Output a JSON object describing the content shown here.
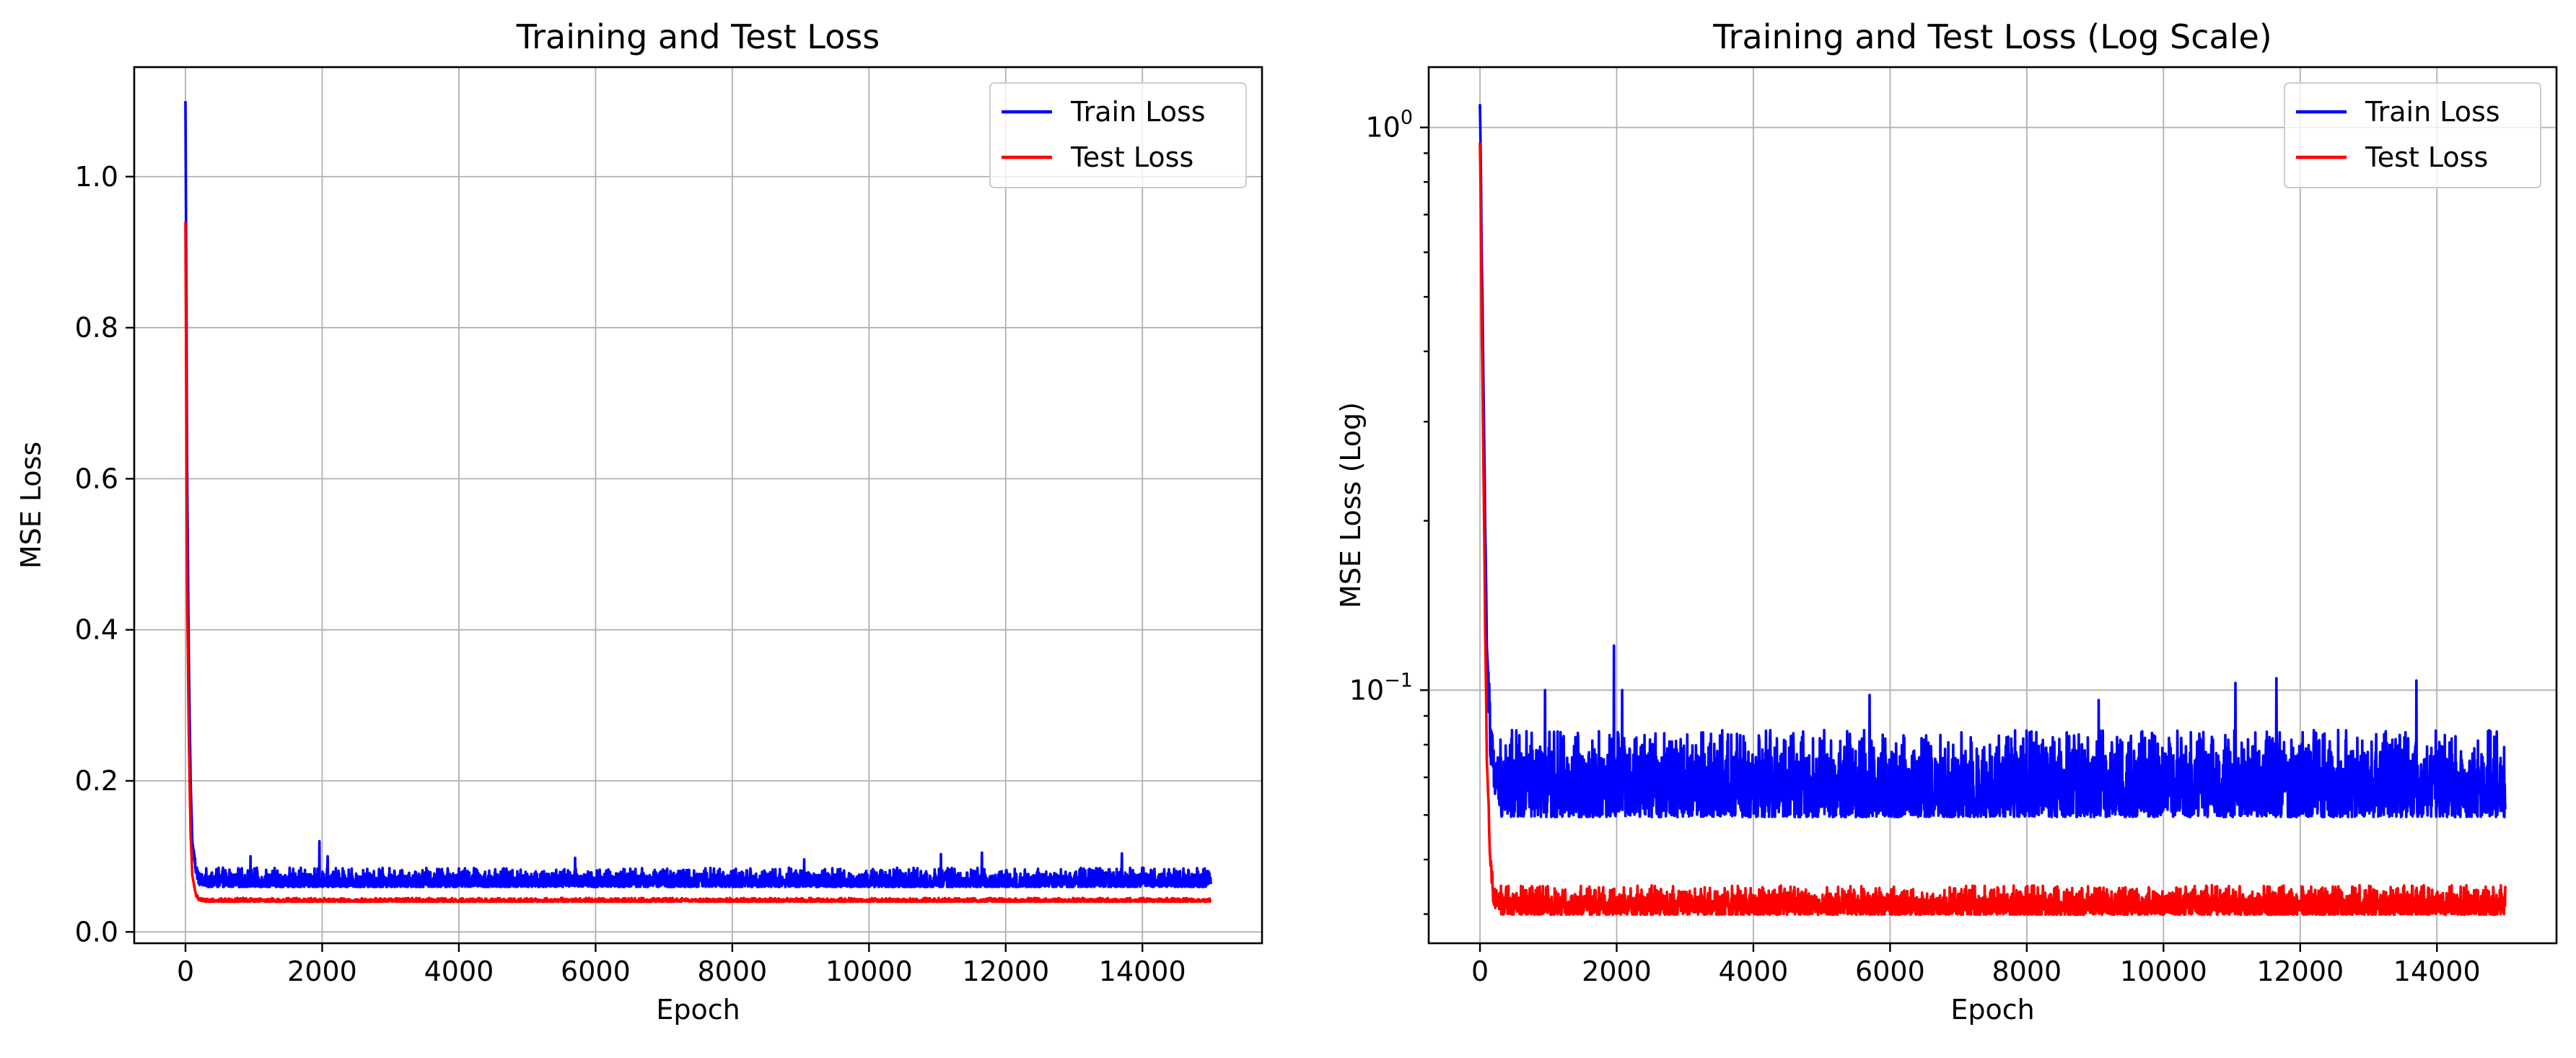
{
  "chart_data": [
    {
      "type": "line",
      "title": "Training and Test Loss",
      "xlabel": "Epoch",
      "ylabel": "MSE Loss",
      "yscale": "linear",
      "xlim": [
        -750,
        15750
      ],
      "ylim": [
        -0.015,
        1.145
      ],
      "x_ticks": [
        0,
        2000,
        4000,
        6000,
        8000,
        10000,
        12000,
        14000
      ],
      "x_tick_labels": [
        "0",
        "2000",
        "4000",
        "6000",
        "8000",
        "10000",
        "12000",
        "14000"
      ],
      "y_ticks": [
        0.0,
        0.2,
        0.4,
        0.6,
        0.8,
        1.0
      ],
      "y_tick_labels": [
        "0.0",
        "0.2",
        "0.4",
        "0.6",
        "0.8",
        "1.0"
      ],
      "grid": true,
      "legend_position": "top-right",
      "series": [
        {
          "name": "Train Loss",
          "color": "#0000ff",
          "x": [
            0,
            10,
            25,
            50,
            75,
            100,
            150,
            200,
            300,
            500,
            1000,
            1950,
            2000,
            2050,
            3000,
            4000,
            5000,
            5700,
            6000,
            7000,
            8000,
            9000,
            10000,
            11000,
            12000,
            13000,
            13700,
            14000,
            15000
          ],
          "y": [
            1.1,
            0.9,
            0.6,
            0.35,
            0.2,
            0.12,
            0.085,
            0.07,
            0.068,
            0.067,
            0.068,
            0.072,
            0.12,
            0.07,
            0.068,
            0.068,
            0.068,
            0.068,
            0.068,
            0.068,
            0.068,
            0.068,
            0.068,
            0.068,
            0.068,
            0.068,
            0.068,
            0.068,
            0.068
          ],
          "band_low": 0.055,
          "band_high": 0.085,
          "spikes": [
            {
              "x": 1960,
              "y": 0.12
            },
            {
              "x": 2080,
              "y": 0.1
            },
            {
              "x": 950,
              "y": 0.1
            },
            {
              "x": 5700,
              "y": 0.098
            },
            {
              "x": 9050,
              "y": 0.096
            },
            {
              "x": 11050,
              "y": 0.103
            },
            {
              "x": 11650,
              "y": 0.105
            },
            {
              "x": 13700,
              "y": 0.104
            }
          ]
        },
        {
          "name": "Test Loss",
          "color": "#ff0000",
          "x": [
            0,
            10,
            25,
            50,
            75,
            100,
            150,
            200,
            300,
            500,
            1000,
            2000,
            4000,
            6000,
            8000,
            10000,
            12000,
            14000,
            15000
          ],
          "y": [
            0.94,
            0.75,
            0.45,
            0.25,
            0.13,
            0.075,
            0.05,
            0.043,
            0.042,
            0.042,
            0.042,
            0.042,
            0.042,
            0.042,
            0.042,
            0.042,
            0.042,
            0.042,
            0.042
          ],
          "band_low": 0.039,
          "band_high": 0.045
        }
      ]
    },
    {
      "type": "line",
      "title": "Training and Test Loss (Log Scale)",
      "xlabel": "Epoch",
      "ylabel": "MSE Loss (Log)",
      "yscale": "log",
      "xlim": [
        -750,
        15750
      ],
      "ylim": [
        0.0355,
        1.28
      ],
      "x_ticks": [
        0,
        2000,
        4000,
        6000,
        8000,
        10000,
        12000,
        14000
      ],
      "x_tick_labels": [
        "0",
        "2000",
        "4000",
        "6000",
        "8000",
        "10000",
        "12000",
        "14000"
      ],
      "y_major_ticks": [
        0.1,
        1.0
      ],
      "y_major_tick_labels": [
        {
          "base": "10",
          "exp": "−1"
        },
        {
          "base": "10",
          "exp": "0"
        }
      ],
      "y_minor_ticks": [
        0.04,
        0.05,
        0.06,
        0.07,
        0.08,
        0.09,
        0.2,
        0.3,
        0.4,
        0.5,
        0.6,
        0.7,
        0.8,
        0.9
      ],
      "grid": true,
      "legend_position": "top-right",
      "series": [
        {
          "name": "Train Loss",
          "color": "#0000ff",
          "x": [
            0,
            10,
            25,
            50,
            75,
            100,
            150,
            200,
            300,
            500,
            1000,
            1950,
            2000,
            2050,
            3000,
            4000,
            5000,
            5700,
            6000,
            7000,
            8000,
            9000,
            10000,
            11000,
            12000,
            13000,
            13700,
            14000,
            15000
          ],
          "y": [
            1.1,
            0.9,
            0.6,
            0.35,
            0.2,
            0.12,
            0.085,
            0.07,
            0.068,
            0.067,
            0.068,
            0.072,
            0.12,
            0.07,
            0.068,
            0.068,
            0.068,
            0.068,
            0.068,
            0.068,
            0.068,
            0.068,
            0.068,
            0.068,
            0.068,
            0.068,
            0.068,
            0.068,
            0.068
          ],
          "band_low": 0.055,
          "band_high": 0.085,
          "spikes": [
            {
              "x": 1960,
              "y": 0.12
            },
            {
              "x": 2080,
              "y": 0.1
            },
            {
              "x": 950,
              "y": 0.1
            },
            {
              "x": 5700,
              "y": 0.098
            },
            {
              "x": 9050,
              "y": 0.096
            },
            {
              "x": 11050,
              "y": 0.103
            },
            {
              "x": 11650,
              "y": 0.105
            },
            {
              "x": 13700,
              "y": 0.104
            }
          ]
        },
        {
          "name": "Test Loss",
          "color": "#ff0000",
          "x": [
            0,
            10,
            25,
            50,
            75,
            100,
            150,
            200,
            300,
            500,
            1000,
            2000,
            4000,
            6000,
            8000,
            10000,
            12000,
            14000,
            15000
          ],
          "y": [
            0.94,
            0.75,
            0.45,
            0.25,
            0.13,
            0.075,
            0.05,
            0.043,
            0.042,
            0.042,
            0.042,
            0.042,
            0.042,
            0.042,
            0.042,
            0.042,
            0.042,
            0.042,
            0.042
          ],
          "band_low": 0.039,
          "band_high": 0.045
        }
      ]
    }
  ]
}
